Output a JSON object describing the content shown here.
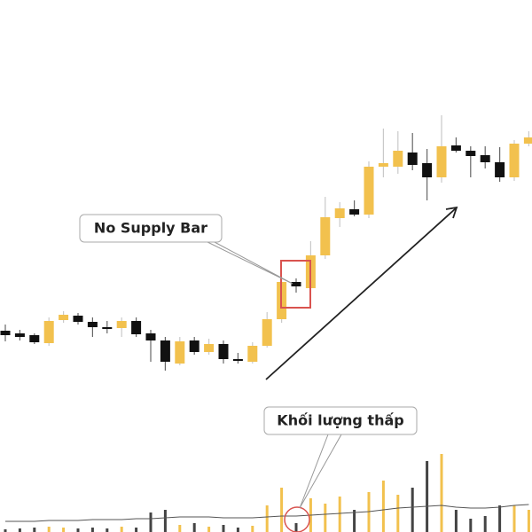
{
  "chart_data": {
    "type": "candlestick",
    "up_color": "#f2c14e",
    "down_color": "#111111",
    "volume_average_color": "#555555",
    "ylim": [
      0,
      600
    ],
    "vlim": [
      0,
      100
    ],
    "open": [
      227,
      224,
      222,
      213,
      239,
      244,
      237,
      231,
      230,
      238,
      224,
      216,
      190,
      216,
      203,
      212,
      195,
      192,
      210,
      240,
      282,
      275,
      312,
      354,
      364,
      358,
      412,
      412,
      428,
      416,
      400,
      436,
      430,
      425,
      417,
      400,
      438
    ],
    "high": [
      234,
      228,
      224,
      242,
      249,
      247,
      242,
      238,
      242,
      242,
      228,
      220,
      220,
      220,
      218,
      216,
      202,
      214,
      248,
      286,
      286,
      328,
      378,
      372,
      374,
      418,
      455,
      452,
      450,
      432,
      470,
      445,
      435,
      435,
      434,
      442,
      452
    ],
    "low": [
      215,
      216,
      212,
      210,
      236,
      234,
      220,
      224,
      220,
      220,
      192,
      182,
      188,
      200,
      200,
      190,
      190,
      190,
      208,
      236,
      270,
      270,
      308,
      344,
      356,
      354,
      400,
      404,
      408,
      374,
      394,
      428,
      400,
      410,
      395,
      396,
      435
    ],
    "close": [
      222,
      220,
      214,
      238,
      245,
      237,
      231,
      229,
      238,
      223,
      216,
      192,
      215,
      203,
      212,
      195,
      193,
      210,
      240,
      282,
      277,
      312,
      355,
      365,
      358,
      412,
      416,
      430,
      414,
      400,
      435,
      430,
      424,
      417,
      400,
      438,
      445
    ],
    "volume": [
      3,
      4,
      5,
      6,
      5,
      4,
      5,
      4,
      6,
      5,
      22,
      25,
      8,
      10,
      6,
      8,
      5,
      7,
      30,
      50,
      10,
      38,
      32,
      40,
      25,
      45,
      58,
      42,
      50,
      80,
      88,
      25,
      15,
      18,
      30,
      30,
      25
    ],
    "volume_average": [
      12,
      12,
      12,
      13,
      13,
      13,
      14,
      14,
      14,
      15,
      15,
      16,
      17,
      17,
      17,
      16,
      16,
      16,
      17,
      18,
      18,
      19,
      20,
      21,
      22,
      23,
      25,
      27,
      28,
      29,
      30,
      28,
      27,
      27,
      28,
      30,
      31
    ],
    "annotations": [
      "No Supply Bar",
      "Khối lượng thấp"
    ]
  }
}
